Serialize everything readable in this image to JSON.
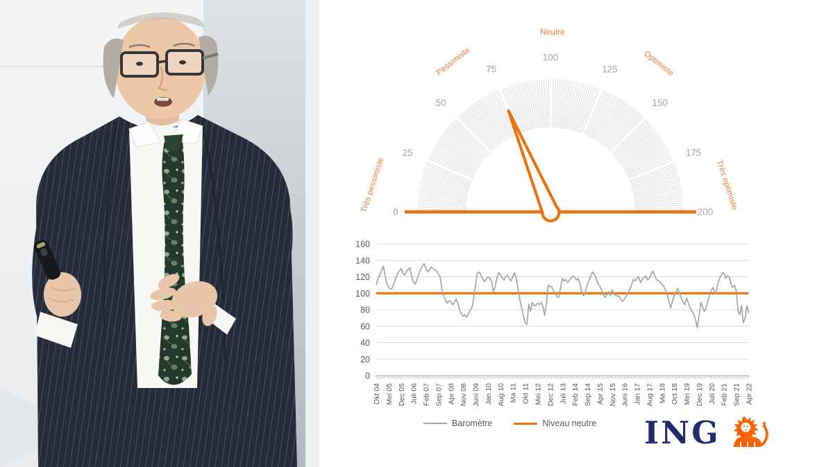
{
  "photo_alt": "Presenter in dark pinstripe suit with glasses and floral tie holding a presentation clicker",
  "brand": {
    "name": "ING",
    "navy": "#222a72",
    "lion_orange": "#FF6200"
  },
  "chart_data": [
    {
      "type": "gauge",
      "min": 0,
      "max": 200,
      "value": 75,
      "tick_interval": 25,
      "tick_values": [
        0,
        25,
        50,
        75,
        100,
        125,
        150,
        175,
        200
      ],
      "tick_labels": [
        "0",
        "25",
        "50",
        "75",
        "100",
        "125",
        "150",
        "175",
        "200"
      ],
      "category_labels": [
        "Très pessimiste",
        "Pessimiste",
        "Neutre",
        "Optimiste",
        "Très optimiste"
      ],
      "band_color": "#e2e2e2",
      "divider_color": "#ffffff",
      "needle_color": "#E87511",
      "tick_label_color": "#a6a6a6"
    },
    {
      "type": "line",
      "x_labels_shown": [
        "Okt 04",
        "Mei 05",
        "Dec 05",
        "Juli 06",
        "Feb 07",
        "Sep 07",
        "Apr 08",
        "Nov 08",
        "Juni 09",
        "Jan 10",
        "Aug 10",
        "Ma 11",
        "Okt 11",
        "Mei 12",
        "Dec 12",
        "Juli 13",
        "Feb 14",
        "Sep 14",
        "Apr 15",
        "Nov 15",
        "Juni 16",
        "Jan 17",
        "Aug 17",
        "Ma 18",
        "Oct 18",
        "Mei 19",
        "Dec 19",
        "Juli 20",
        "Feb 21",
        "Sep 21",
        "Apr 22"
      ],
      "x_label_step_months": 7,
      "ylim": [
        0,
        160
      ],
      "y_ticks": [
        0,
        20,
        40,
        60,
        80,
        100,
        120,
        140,
        160
      ],
      "grid_color": "#d9d9d9",
      "axis_label_color": "#595959",
      "series": [
        {
          "name": "Baromètre",
          "color": "#a6a6a6",
          "values": [
            110,
            118,
            122,
            128,
            133,
            121,
            112,
            107,
            105,
            106,
            112,
            118,
            124,
            127,
            130,
            125,
            122,
            126,
            129,
            131,
            120,
            113,
            111,
            117,
            124,
            129,
            133,
            136,
            130,
            126,
            128,
            132,
            130,
            128,
            127,
            124,
            120,
            105,
            97,
            92,
            88,
            91,
            90,
            86,
            89,
            93,
            88,
            80,
            75,
            72,
            74,
            71,
            75,
            79,
            83,
            95,
            110,
            124,
            126,
            122,
            118,
            114,
            117,
            120,
            118,
            115,
            102,
            108,
            118,
            125,
            123,
            119,
            116,
            120,
            122,
            118,
            115,
            120,
            125,
            118,
            105,
            92,
            83,
            72,
            64,
            62,
            87,
            78,
            89,
            85,
            85,
            88,
            86,
            89,
            84,
            73,
            90,
            110,
            108,
            108,
            103,
            99,
            96,
            95,
            108,
            118,
            115,
            117,
            113,
            116,
            119,
            121,
            119,
            116,
            118,
            110,
            100,
            97,
            103,
            110,
            116,
            121,
            126,
            123,
            118,
            112,
            109,
            104,
            99,
            95,
            98,
            102,
            97,
            104,
            100,
            97,
            97,
            96,
            92,
            90,
            93,
            97,
            101,
            105,
            110,
            117,
            115,
            118,
            120,
            113,
            117,
            119,
            121,
            116,
            118,
            123,
            127,
            122,
            117,
            115,
            114,
            111,
            109,
            104,
            99,
            90,
            82,
            90,
            97,
            101,
            106,
            100,
            94,
            90,
            86,
            94,
            88,
            82,
            78,
            75,
            68,
            58,
            72,
            89,
            83,
            78,
            82,
            90,
            100,
            104,
            107,
            99,
            105,
            115,
            120,
            124,
            125,
            118,
            121,
            120,
            111,
            107,
            110,
            103,
            79,
            74,
            85,
            64,
            70,
            85,
            76
          ]
        },
        {
          "name": "Niveau neutre",
          "color": "#E87511",
          "value": 100
        }
      ]
    }
  ]
}
